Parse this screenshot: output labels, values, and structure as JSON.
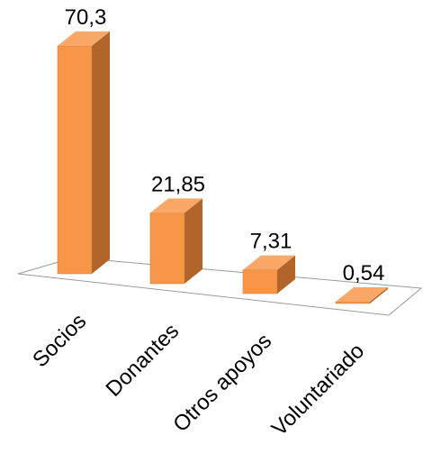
{
  "chart_data": {
    "type": "bar",
    "style": "3d-column",
    "categories": [
      "Socios",
      "Donantes",
      "Otros apoyos",
      "Voluntariado"
    ],
    "values": [
      70.3,
      21.85,
      7.31,
      0.54
    ],
    "value_labels": [
      "70,3",
      "21,85",
      "7,31",
      "0,54"
    ],
    "title": "",
    "xlabel": "",
    "ylabel": "",
    "ylim": [
      0,
      75
    ],
    "grid": false,
    "legend": "none",
    "colors": {
      "bar_front": "#F79646",
      "bar_side": "#B2652A",
      "bar_top": "#F9A868",
      "bar_edge": "#C9763A",
      "floor_stroke": "#9A9A9A",
      "floor_fill": "#FFFFFF"
    }
  }
}
